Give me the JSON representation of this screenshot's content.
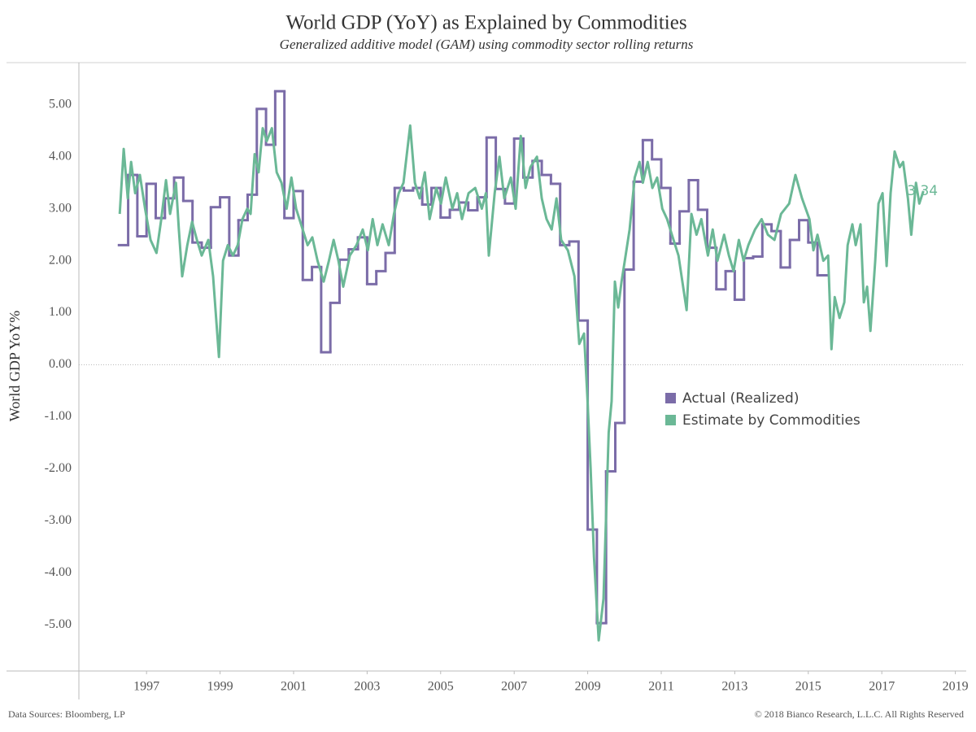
{
  "chart_data": {
    "type": "line",
    "title": "World GDP (YoY) as Explained by Commodities",
    "subtitle": "Generalized additive model (GAM) using commodity sector rolling returns",
    "y_label": "World GDP YoY%",
    "source": "Data Sources: Bloomberg, LP",
    "copyright": "© 2018 Bianco Research, L.L.C. All Rights Reserved",
    "xlim": [
      1995.16,
      2019.23
    ],
    "xticks": [
      1997,
      1999,
      2001,
      2003,
      2005,
      2007,
      2009,
      2011,
      2013,
      2015,
      2017,
      2019
    ],
    "ylim": [
      -5.89,
      5.81
    ],
    "yticks": [
      {
        "value": -5,
        "label": "-5.00"
      },
      {
        "value": -4,
        "label": "-4.00"
      },
      {
        "value": -3,
        "label": "-3.00"
      },
      {
        "value": -2,
        "label": "-2.00"
      },
      {
        "value": -1,
        "label": "-1.00"
      },
      {
        "value": 0,
        "label": "0.00"
      },
      {
        "value": 1,
        "label": "1.00"
      },
      {
        "value": 2,
        "label": "2.00"
      },
      {
        "value": 3,
        "label": "3.00"
      },
      {
        "value": 4,
        "label": "4.00"
      },
      {
        "value": 5,
        "label": "5.00"
      }
    ],
    "zero_line": true,
    "legend": "right",
    "series": [
      {
        "name": "Actual (Realized)",
        "color": "#7b6ca8",
        "line_shape": "step",
        "x": [
          1996.25,
          1996.5,
          1996.75,
          1997,
          1997.25,
          1997.5,
          1997.75,
          1998,
          1998.25,
          1998.5,
          1998.75,
          1999,
          1999.25,
          1999.5,
          1999.75,
          2000,
          2000.25,
          2000.5,
          2000.75,
          2001,
          2001.25,
          2001.5,
          2001.75,
          2002,
          2002.25,
          2002.5,
          2002.75,
          2003,
          2003.25,
          2003.5,
          2003.75,
          2004,
          2004.25,
          2004.5,
          2004.75,
          2005,
          2005.25,
          2005.5,
          2005.75,
          2006,
          2006.25,
          2006.5,
          2006.75,
          2007,
          2007.25,
          2007.5,
          2007.75,
          2008,
          2008.25,
          2008.5,
          2008.75,
          2009,
          2009.25,
          2009.5,
          2009.75,
          2010,
          2010.25,
          2010.5,
          2010.75,
          2011,
          2011.25,
          2011.5,
          2011.75,
          2012,
          2012.25,
          2012.5,
          2012.75,
          2013,
          2013.25,
          2013.5,
          2013.75,
          2014,
          2014.25,
          2014.5,
          2014.75,
          2015,
          2015.25
        ],
        "values": [
          2.3,
          3.65,
          2.47,
          3.48,
          2.82,
          3.2,
          3.6,
          3.15,
          2.35,
          2.25,
          3.03,
          3.22,
          2.1,
          2.78,
          3.27,
          4.92,
          4.23,
          5.26,
          2.82,
          3.34,
          1.63,
          1.88,
          0.24,
          1.19,
          2.02,
          2.22,
          2.45,
          1.55,
          1.8,
          2.15,
          3.4,
          3.35,
          3.4,
          3.08,
          3.4,
          2.83,
          2.98,
          3.12,
          2.97,
          3.22,
          4.37,
          3.38,
          3.1,
          4.35,
          3.6,
          3.92,
          3.65,
          3.48,
          2.3,
          2.37,
          0.85,
          -3.17,
          -4.97,
          -2.05,
          -1.12,
          1.83,
          3.52,
          4.32,
          3.95,
          3.4,
          2.33,
          2.95,
          3.55,
          2.98,
          2.25,
          1.45,
          1.8,
          1.25,
          2.05,
          2.08,
          2.7,
          2.57,
          1.87,
          2.4,
          2.78,
          2.35,
          1.72
        ]
      },
      {
        "name": "Estimate by Commodities",
        "color": "#6bb896",
        "label_last": true,
        "x": [
          1996.27,
          1996.38,
          1996.49,
          1996.58,
          1996.69,
          1996.82,
          1996.96,
          1997.11,
          1997.27,
          1997.4,
          1997.53,
          1997.64,
          1997.8,
          1997.88,
          1997.97,
          1998.11,
          1998.24,
          1998.37,
          1998.5,
          1998.68,
          1998.81,
          1998.97,
          1999.08,
          1999.21,
          1999.35,
          1999.48,
          1999.61,
          1999.74,
          1999.83,
          1999.94,
          2000.05,
          2000.16,
          2000.27,
          2000.41,
          2000.54,
          2000.67,
          2000.81,
          2000.94,
          2001.07,
          2001.38,
          2001.51,
          2001.65,
          2001.82,
          2001.96,
          2002.09,
          2002.22,
          2002.35,
          2002.53,
          2002.71,
          2002.88,
          2003.02,
          2003.15,
          2003.28,
          2003.42,
          2003.59,
          2003.73,
          2003.86,
          2003.99,
          2004.17,
          2004.3,
          2004.43,
          2004.57,
          2004.7,
          2004.88,
          2005.01,
          2005.14,
          2005.32,
          2005.45,
          2005.58,
          2005.76,
          2005.94,
          2006.12,
          2006.23,
          2006.31,
          2006.47,
          2006.6,
          2006.73,
          2006.91,
          2007.04,
          2007.18,
          2007.31,
          2007.44,
          2007.62,
          2007.75,
          2007.88,
          2008.02,
          2008.15,
          2008.28,
          2008.46,
          2008.64,
          2008.77,
          2008.9,
          2008.99,
          2009.08,
          2009.17,
          2009.3,
          2009.43,
          2009.57,
          2009.65,
          2009.74,
          2009.83,
          2009.92,
          2010.01,
          2010.14,
          2010.28,
          2010.41,
          2010.5,
          2010.63,
          2010.76,
          2010.89,
          2011.03,
          2011.16,
          2011.29,
          2011.47,
          2011.69,
          2011.82,
          2011.96,
          2012.09,
          2012.27,
          2012.4,
          2012.53,
          2012.71,
          2012.84,
          2012.97,
          2013.11,
          2013.24,
          2013.37,
          2013.55,
          2013.73,
          2013.9,
          2014.08,
          2014.26,
          2014.48,
          2014.65,
          2014.83,
          2015.03,
          2015.14,
          2015.25,
          2015.41,
          2015.54,
          2015.63,
          2015.72,
          2015.85,
          2015.98,
          2016.07,
          2016.2,
          2016.29,
          2016.42,
          2016.51,
          2016.6,
          2016.69,
          2016.82,
          2016.91,
          2017.02,
          2017.13,
          2017.24,
          2017.35,
          2017.49,
          2017.58,
          2017.71,
          2017.8,
          2017.93,
          2018.02,
          2018.13
        ],
        "values": [
          2.9,
          4.15,
          3.2,
          3.9,
          3.3,
          3.65,
          3.0,
          2.4,
          2.15,
          2.8,
          3.55,
          2.9,
          3.5,
          2.6,
          1.7,
          2.3,
          2.75,
          2.4,
          2.1,
          2.4,
          1.7,
          0.15,
          2.0,
          2.3,
          2.1,
          2.3,
          2.8,
          3.0,
          2.9,
          4.05,
          3.7,
          4.55,
          4.3,
          4.55,
          3.7,
          3.5,
          3.0,
          3.6,
          3.0,
          2.3,
          2.45,
          2.0,
          1.6,
          2.0,
          2.4,
          2.0,
          1.5,
          2.1,
          2.3,
          2.6,
          2.2,
          2.8,
          2.3,
          2.7,
          2.3,
          2.9,
          3.3,
          3.5,
          4.6,
          3.5,
          3.2,
          3.7,
          2.8,
          3.4,
          3.1,
          3.6,
          3.0,
          3.3,
          2.8,
          3.3,
          3.4,
          3.0,
          3.3,
          2.1,
          3.3,
          4.0,
          3.2,
          3.6,
          3.0,
          4.4,
          3.4,
          3.8,
          4.0,
          3.2,
          2.8,
          2.6,
          3.2,
          2.4,
          2.2,
          1.7,
          0.4,
          0.6,
          -0.6,
          -2.0,
          -3.7,
          -5.3,
          -4.5,
          -1.3,
          -0.7,
          1.6,
          1.1,
          1.6,
          2.0,
          2.6,
          3.6,
          3.9,
          3.5,
          3.9,
          3.4,
          3.6,
          3.0,
          2.8,
          2.5,
          2.1,
          1.05,
          2.9,
          2.5,
          2.8,
          2.1,
          2.6,
          2.0,
          2.5,
          2.1,
          1.8,
          2.4,
          2.0,
          2.3,
          2.6,
          2.8,
          2.5,
          2.4,
          2.9,
          3.1,
          3.65,
          3.2,
          2.8,
          2.2,
          2.5,
          2.0,
          2.1,
          0.3,
          1.3,
          0.9,
          1.2,
          2.3,
          2.7,
          2.3,
          2.7,
          1.2,
          1.5,
          0.65,
          2.0,
          3.1,
          3.3,
          1.9,
          3.3,
          4.1,
          3.8,
          3.9,
          3.2,
          2.5,
          3.5,
          3.1,
          3.34
        ]
      }
    ]
  }
}
